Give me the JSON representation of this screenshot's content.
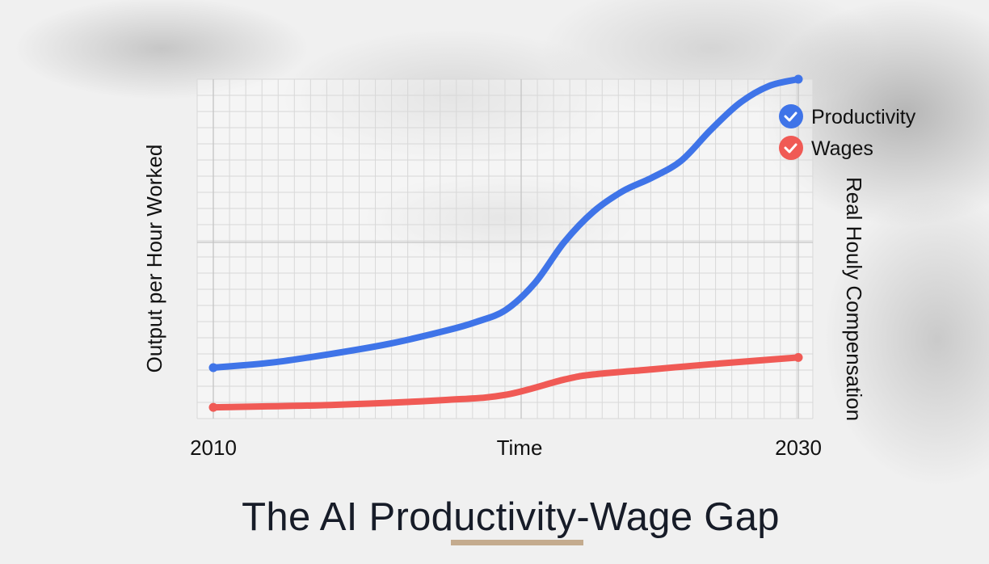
{
  "chart_data": {
    "type": "line",
    "title": "The AI Productivity-Wage Gap",
    "xlabel": "Time",
    "ylabel_left": "Output per Hour Worked",
    "ylabel_right": "Real Houly Compensation",
    "x_tick_labels": [
      "2010",
      "2030"
    ],
    "xlim": [
      2010,
      2030
    ],
    "ylim": [
      0,
      100
    ],
    "grid": true,
    "legend_position": "top-right",
    "series": [
      {
        "name": "Productivity",
        "color": "#3f74e8",
        "x": [
          2010,
          2012,
          2014,
          2016,
          2018,
          2019,
          2020,
          2021,
          2022,
          2023,
          2024,
          2025,
          2026,
          2027,
          2028,
          2029,
          2030
        ],
        "y": [
          15,
          16.5,
          19,
          22,
          26,
          28.5,
          32,
          40,
          52,
          61,
          67,
          71,
          76,
          85,
          93,
          98,
          100
        ]
      },
      {
        "name": "Wages",
        "color": "#f05a55",
        "x": [
          2010,
          2014,
          2018,
          2020,
          2022,
          2023,
          2025,
          2027,
          2030
        ],
        "y": [
          3.3,
          4,
          5.5,
          7,
          11.5,
          13,
          14.5,
          16,
          18
        ]
      }
    ]
  }
}
